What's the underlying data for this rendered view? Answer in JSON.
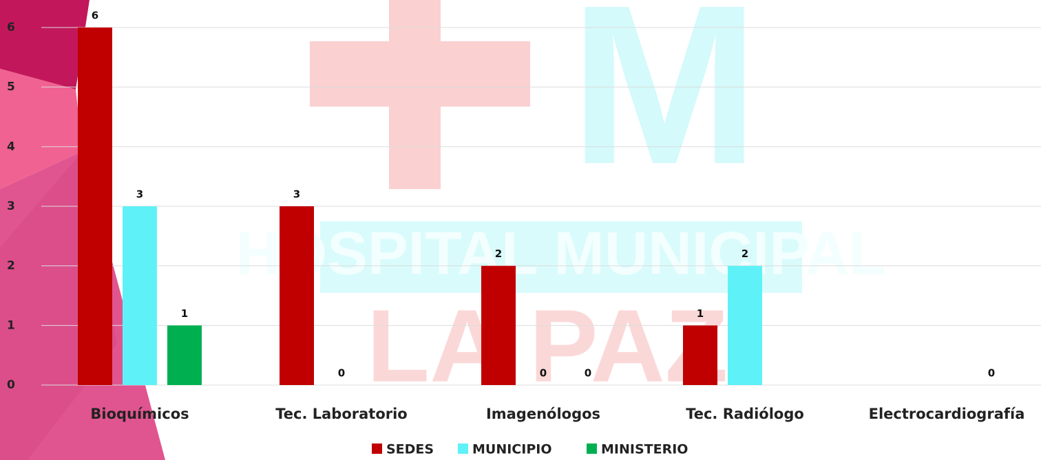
{
  "chart_data": {
    "type": "bar",
    "watermark": [
      "M",
      "HOSPITAL MUNICIPAL",
      "LA PAZ"
    ],
    "categories": [
      "Bioquímicos",
      "Tec. Laboratorio",
      "Imagenólogos",
      "Tec. Radiólogo",
      "Electrocardiografía"
    ],
    "series": [
      {
        "name": "SEDES",
        "color": "#c00000",
        "values": [
          6,
          3,
          2,
          1,
          null
        ]
      },
      {
        "name": "MUNICIPIO",
        "color": "#5ef2f8",
        "values": [
          3,
          0,
          0,
          2,
          null
        ]
      },
      {
        "name": "MINISTERIO",
        "color": "#00b050",
        "values": [
          1,
          null,
          0,
          null,
          0
        ]
      }
    ],
    "ylim": [
      0,
      6
    ],
    "yticks": [
      0,
      1,
      2,
      3,
      4,
      5,
      6
    ],
    "grid": true,
    "legend": "bottom"
  }
}
